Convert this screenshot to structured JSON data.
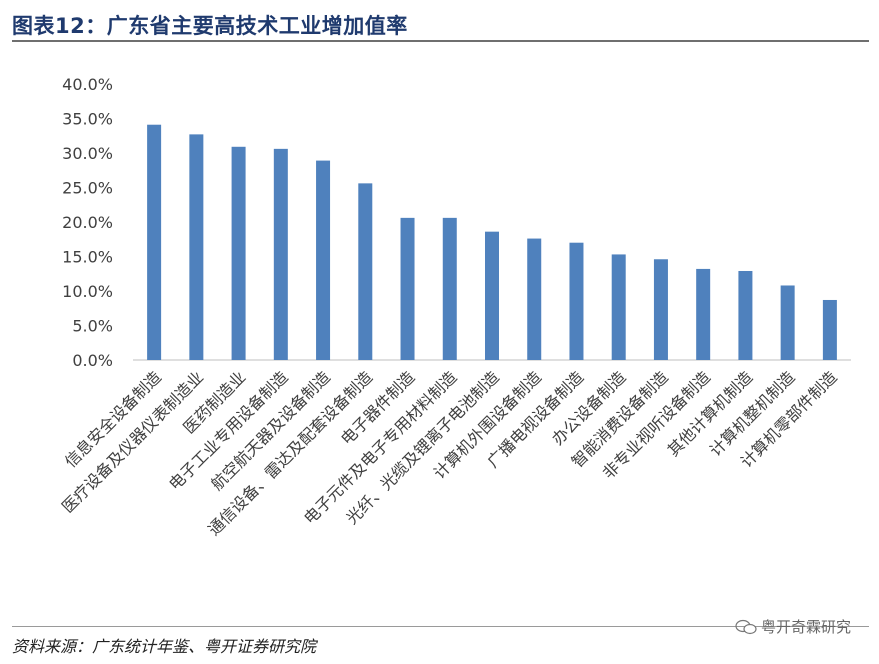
{
  "figure_title": "图表12：广东省主要高技术工业增加值率",
  "source_note": "资料来源：广东统计年鉴、粤开证券研究院",
  "watermark": "粤开奇霖研究",
  "colors": {
    "bar": "#4f81bd",
    "title": "#1f3a6e"
  },
  "chart_data": {
    "type": "bar",
    "title": "",
    "xlabel": "",
    "ylabel": "",
    "ylim": [
      0,
      40
    ],
    "y_ticks": [
      "0.0%",
      "5.0%",
      "10.0%",
      "15.0%",
      "20.0%",
      "25.0%",
      "30.0%",
      "35.0%",
      "40.0%"
    ],
    "grid": false,
    "legend": "none",
    "categories": [
      "信息安全设备制造",
      "医疗设备及仪器仪表制造业",
      "医药制造业",
      "电子工业专用设备制造",
      "航空航天器及设备制造",
      "通信设备、雷达及配套设备制造",
      "电子器件制造",
      "电子元件及电子专用材料制造",
      "光纤、光缆及锂离子电池制造",
      "计算机外围设备制造",
      "广播电视设备制造",
      "办公设备制造",
      "智能消费设备制造",
      "非专业视听设备制造",
      "其他计算机制造",
      "计算机整机制造",
      "计算机零部件制造"
    ],
    "values": [
      34.1,
      32.7,
      30.9,
      30.6,
      28.9,
      25.6,
      20.6,
      20.6,
      18.6,
      17.6,
      17.0,
      15.3,
      14.6,
      13.2,
      12.9,
      10.8,
      8.7
    ],
    "value_unit": "%"
  }
}
